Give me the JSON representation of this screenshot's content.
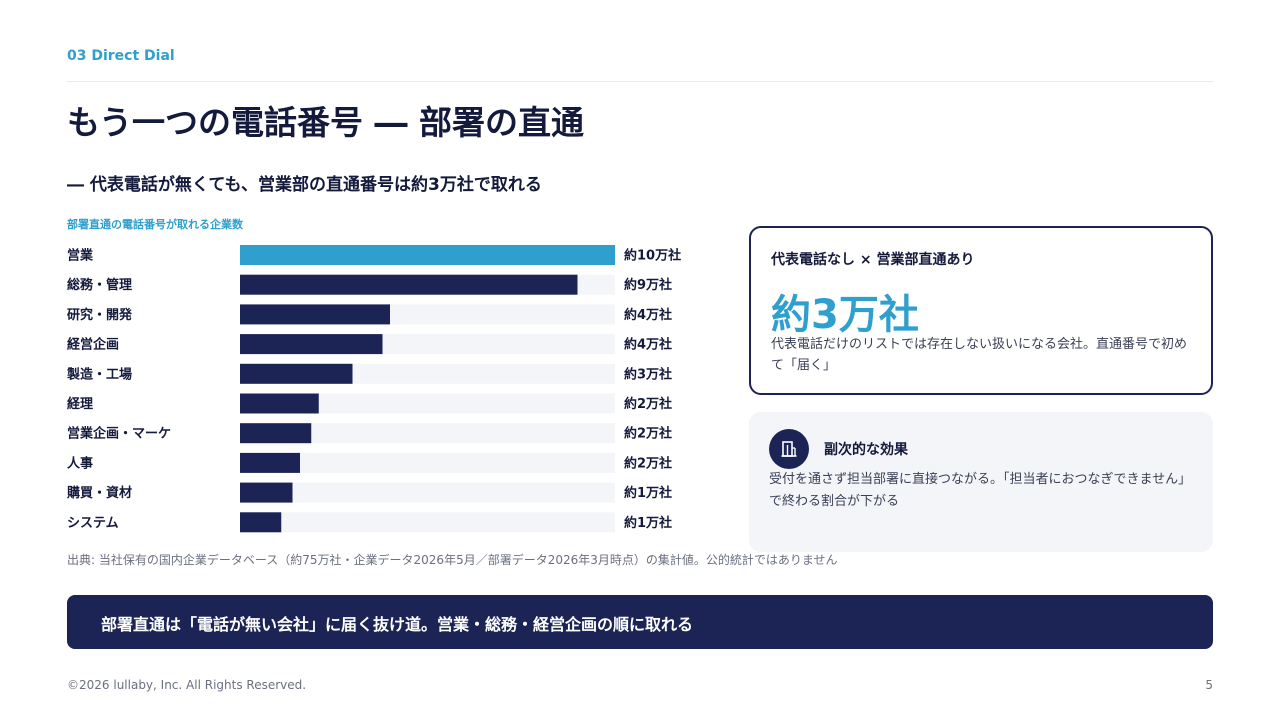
{
  "header": {
    "section_tag": "03  Direct Dial",
    "title": "もう一つの電話番号 ― 部署の直通",
    "subtitle": "― 代表電話が無くても、営業部の直通番号は約3万社で取れる"
  },
  "chart_caption": "部署直通の電話番号が取れる企業数",
  "chart_data": {
    "type": "bar",
    "orientation": "horizontal",
    "title": "部署直通の電話番号が取れる企業数",
    "categories": [
      "営業",
      "総務・管理",
      "研究・開発",
      "経営企画",
      "製造・工場",
      "経理",
      "営業企画・マーケ",
      "人事",
      "購買・資材",
      "システム"
    ],
    "values": [
      100000,
      90000,
      40000,
      38000,
      30000,
      21000,
      19000,
      16000,
      14000,
      11000
    ],
    "value_labels": [
      "約10万社",
      "約9万社",
      "約4万社",
      "約4万社",
      "約3万社",
      "約2万社",
      "約2万社",
      "約2万社",
      "約1万社",
      "約1万社"
    ],
    "unit": "社",
    "xlim": [
      0,
      100000
    ],
    "grid": false,
    "legend": "none",
    "highlight_index": 0,
    "colors": {
      "highlight": "#2f9fce",
      "bar": "#1b2455",
      "track": "#f3f5f9"
    }
  },
  "source_note": "出典: 当社保有の国内企業データベース（約75万社・企業データ2026年5月／部署データ2026年3月時点）の集計値。公的統計ではありません",
  "highlight_card": {
    "heading": "代表電話なし × 営業部直通あり",
    "big_value": "約3万社",
    "description": "代表電話だけのリストでは存在しない扱いになる会社。直通番号で初めて「届く」"
  },
  "side_card": {
    "icon": "building-icon",
    "heading": "副次的な効果",
    "description": "受付を通さず担当部署に直接つながる。「担当者におつなぎできません」で終わる割合が下がる"
  },
  "banner": {
    "text": "部署直通は「電話が無い会社」に届く抜け道。営業・総務・経営企画の順に取れる"
  },
  "footer": {
    "copyright": "©2026 lullaby, Inc. All Rights Reserved.",
    "page_number": "5"
  },
  "colors": {
    "accent": "#2f9fce",
    "navy": "#1b2455",
    "text": "#141a3c",
    "muted": "#6b7080",
    "panel": "#f3f5f9"
  }
}
